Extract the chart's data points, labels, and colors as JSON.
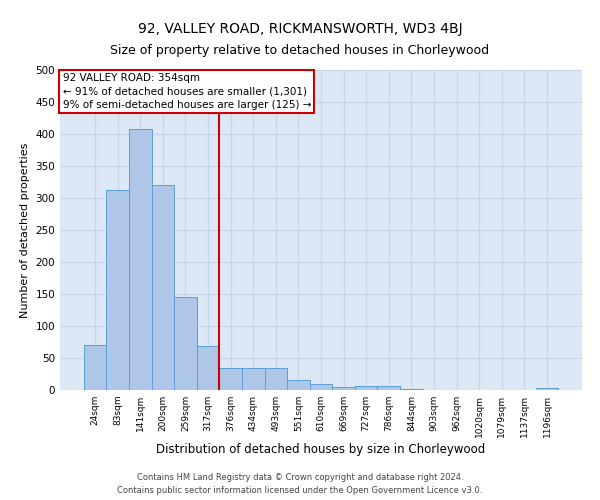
{
  "title": "92, VALLEY ROAD, RICKMANSWORTH, WD3 4BJ",
  "subtitle": "Size of property relative to detached houses in Chorleywood",
  "xlabel": "Distribution of detached houses by size in Chorleywood",
  "ylabel": "Number of detached properties",
  "footer_line1": "Contains HM Land Registry data © Crown copyright and database right 2024.",
  "footer_line2": "Contains public sector information licensed under the Open Government Licence v3.0.",
  "bar_labels": [
    "24sqm",
    "83sqm",
    "141sqm",
    "200sqm",
    "259sqm",
    "317sqm",
    "376sqm",
    "434sqm",
    "493sqm",
    "551sqm",
    "610sqm",
    "669sqm",
    "727sqm",
    "786sqm",
    "844sqm",
    "903sqm",
    "962sqm",
    "1020sqm",
    "1079sqm",
    "1137sqm",
    "1196sqm"
  ],
  "bar_values": [
    70,
    313,
    408,
    320,
    145,
    68,
    35,
    35,
    35,
    15,
    10,
    5,
    6,
    6,
    2,
    0,
    0,
    0,
    0,
    0,
    3
  ],
  "bar_color": "#aec6e8",
  "bar_edgecolor": "#5a9fd4",
  "vline_x": 5.5,
  "vline_color": "#cc0000",
  "annotation_text": "92 VALLEY ROAD: 354sqm\n← 91% of detached houses are smaller (1,301)\n9% of semi-detached houses are larger (125) →",
  "annotation_box_color": "#cc0000",
  "annotation_facecolor": "white",
  "ylim": [
    0,
    500
  ],
  "yticks": [
    0,
    50,
    100,
    150,
    200,
    250,
    300,
    350,
    400,
    450,
    500
  ],
  "grid_color": "#c8d4e8",
  "background_color": "#dce8f5",
  "title_fontsize": 10,
  "subtitle_fontsize": 9,
  "ylabel_fontsize": 8,
  "xlabel_fontsize": 8.5,
  "tick_fontsize": 7.5,
  "xtick_fontsize": 6.5,
  "annotation_fontsize": 7.5,
  "footer_fontsize": 6.0
}
